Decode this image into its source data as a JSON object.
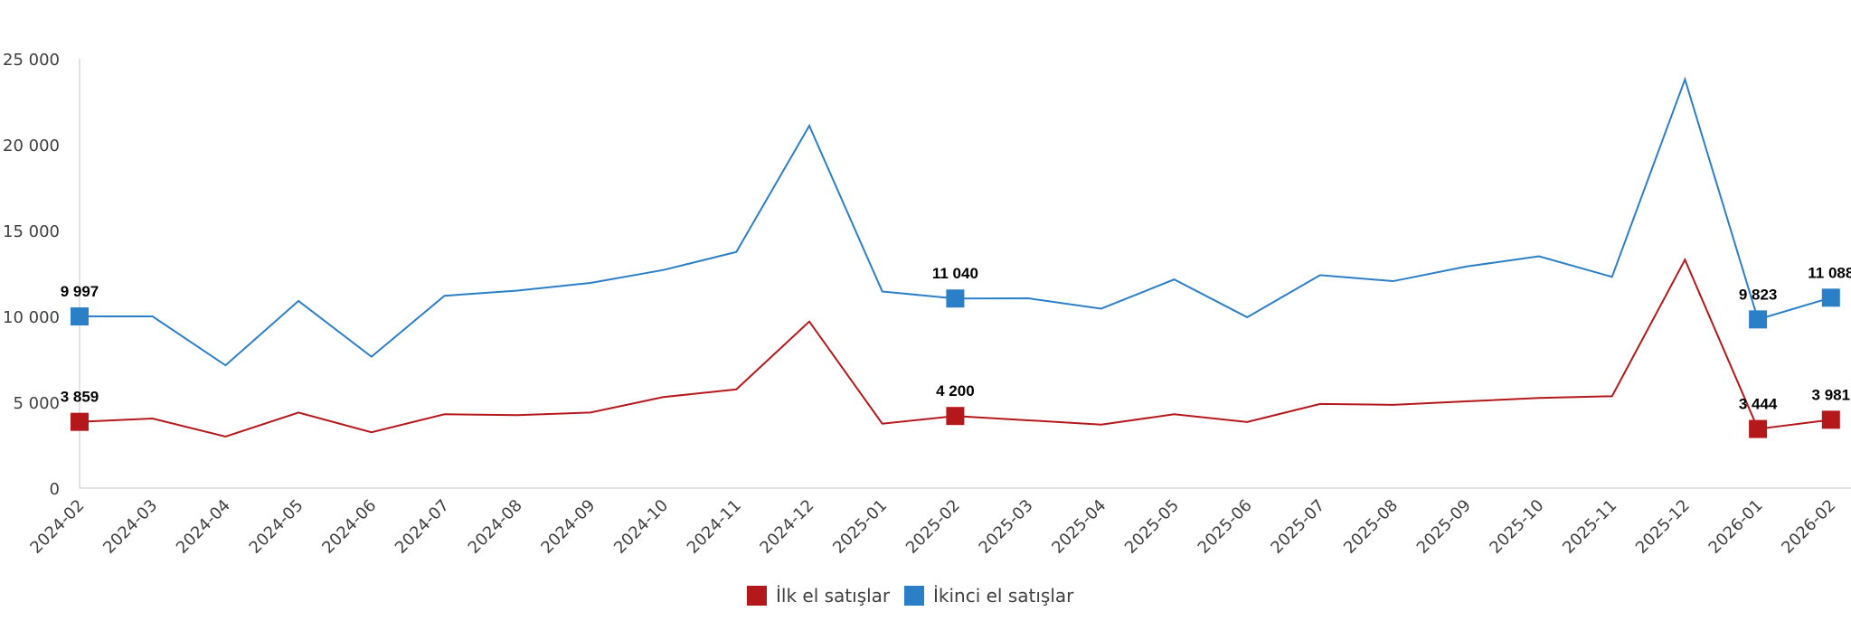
{
  "chart_data": {
    "type": "line",
    "categories": [
      "2024-02",
      "2024-03",
      "2024-04",
      "2024-05",
      "2024-06",
      "2024-07",
      "2024-08",
      "2024-09",
      "2024-10",
      "2024-11",
      "2024-12",
      "2025-01",
      "2025-02",
      "2025-03",
      "2025-04",
      "2025-05",
      "2025-06",
      "2025-07",
      "2025-08",
      "2025-09",
      "2025-10",
      "2025-11",
      "2025-12",
      "2026-01",
      "2026-02"
    ],
    "ylim": [
      0,
      25000
    ],
    "yticks": [
      0,
      5000,
      10000,
      15000,
      20000,
      25000
    ],
    "ytick_labels": [
      "0",
      "5 000",
      "10 000",
      "15 000",
      "20 000",
      "25 000"
    ],
    "grid": false,
    "legend_position": "bottom",
    "series": [
      {
        "name": "İlk el satışlar",
        "color": "#b5181b",
        "values": [
          3859,
          4050,
          3000,
          4400,
          3250,
          4300,
          4250,
          4400,
          5300,
          5750,
          9700,
          3750,
          4200,
          3950,
          3700,
          4300,
          3850,
          4900,
          4850,
          5050,
          5250,
          5350,
          13300,
          3444,
          3981
        ],
        "labeled_points": [
          {
            "index": 0,
            "label": "3 859"
          },
          {
            "index": 12,
            "label": "4 200"
          },
          {
            "index": 23,
            "label": "3 444"
          },
          {
            "index": 24,
            "label": "3 981"
          }
        ]
      },
      {
        "name": "İkinci el satışlar",
        "color": "#2b7fc7",
        "values": [
          9997,
          10000,
          7150,
          10900,
          7650,
          11200,
          11500,
          11950,
          12700,
          13750,
          21100,
          11450,
          11040,
          11050,
          10450,
          12150,
          9950,
          12400,
          12050,
          12900,
          13500,
          12300,
          23800,
          9823,
          11088
        ],
        "labeled_points": [
          {
            "index": 0,
            "label": "9 997"
          },
          {
            "index": 12,
            "label": "11 040"
          },
          {
            "index": 23,
            "label": "9 823"
          },
          {
            "index": 24,
            "label": "11 088"
          }
        ]
      }
    ]
  }
}
